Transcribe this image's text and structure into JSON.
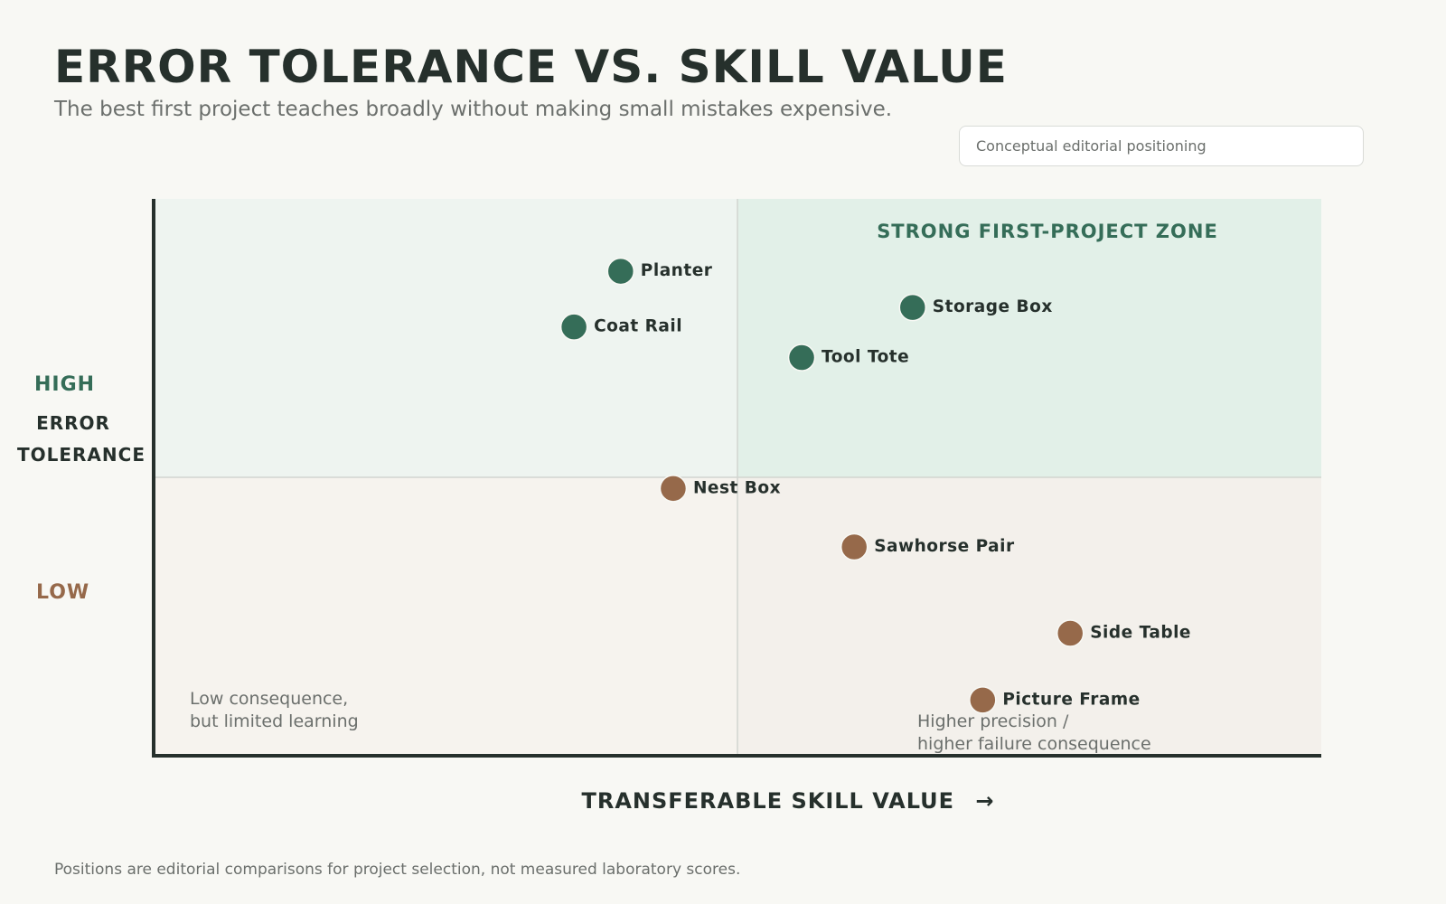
{
  "header": {
    "title": "ERROR TOLERANCE VS. SKILL VALUE",
    "subtitle": "The best first project teaches broadly without making small mistakes expensive.",
    "badge": "Conceptual editorial positioning"
  },
  "footer": {
    "note": "Positions are editorial comparisons for project selection, not measured laboratory scores."
  },
  "colors": {
    "background": "#f8f8f4",
    "high_accent": "#356d58",
    "low_accent": "#96694a",
    "text_dark": "#26302c",
    "text_muted": "#6b6f6c"
  },
  "chart_data": {
    "type": "scatter",
    "xlabel": "TRANSFERABLE SKILL VALUE",
    "ylabel_line1": "ERROR",
    "ylabel_line2": "TOLERANCE",
    "y_high_label": "HIGH",
    "y_low_label": "LOW",
    "xlim": [
      0,
      100
    ],
    "ylim": [
      0,
      100
    ],
    "axis_ticks": "none",
    "grid": false,
    "quadrant_dividers": {
      "x": 50,
      "y": 50
    },
    "zone_label": "STRONG FIRST-PROJECT ZONE",
    "quadrant_notes": {
      "bottom_left": [
        "Low consequence,",
        "but limited learning"
      ],
      "bottom_right": [
        "Higher precision /",
        "higher failure consequence"
      ]
    },
    "points": [
      {
        "label": "Planter",
        "x": 40,
        "y": 87,
        "group": "high"
      },
      {
        "label": "Coat Rail",
        "x": 36,
        "y": 77,
        "group": "high"
      },
      {
        "label": "Storage Box",
        "x": 65,
        "y": 80.5,
        "group": "high"
      },
      {
        "label": "Tool Tote",
        "x": 55.5,
        "y": 71.5,
        "group": "high"
      },
      {
        "label": "Nest Box",
        "x": 44.5,
        "y": 48,
        "group": "low"
      },
      {
        "label": "Sawhorse Pair",
        "x": 60,
        "y": 37.5,
        "group": "low"
      },
      {
        "label": "Side Table",
        "x": 78.5,
        "y": 22,
        "group": "low"
      },
      {
        "label": "Picture Frame",
        "x": 71,
        "y": 10,
        "group": "low"
      }
    ]
  }
}
